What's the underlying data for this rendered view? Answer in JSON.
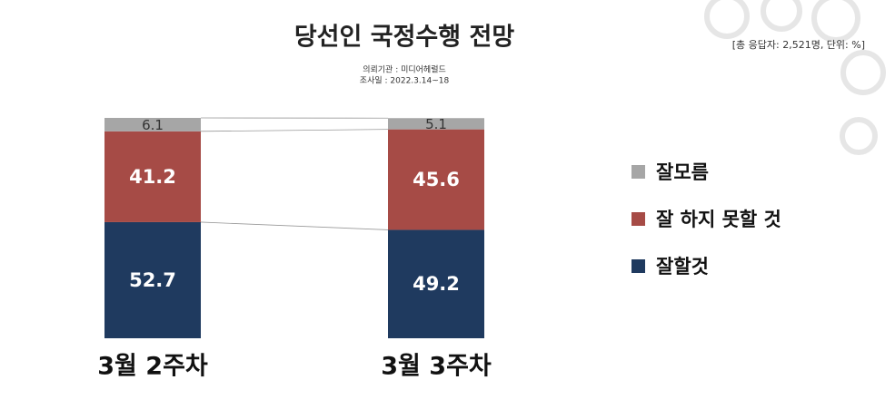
{
  "chart_data": {
    "type": "stacked-bar",
    "title": "당선인 국정수행 전망",
    "subtitle": "[총 응답자: 2,521명, 단위: %]",
    "annotations": [
      "의뢰기관 : 미디어헤럴드",
      "조사일 : 2022.3.14~18"
    ],
    "categories": [
      "3월 2주차",
      "3월 3주차"
    ],
    "series": [
      {
        "name": "잘할것",
        "color": "#1f3a5f",
        "values": [
          52.7,
          49.2
        ]
      },
      {
        "name": "잘 하지 못할 것",
        "color": "#a64b46",
        "values": [
          41.2,
          45.6
        ]
      },
      {
        "name": "잘모름",
        "color": "#a6a6a6",
        "values": [
          6.1,
          5.1
        ]
      }
    ],
    "legend_order": [
      2,
      1,
      0
    ]
  }
}
